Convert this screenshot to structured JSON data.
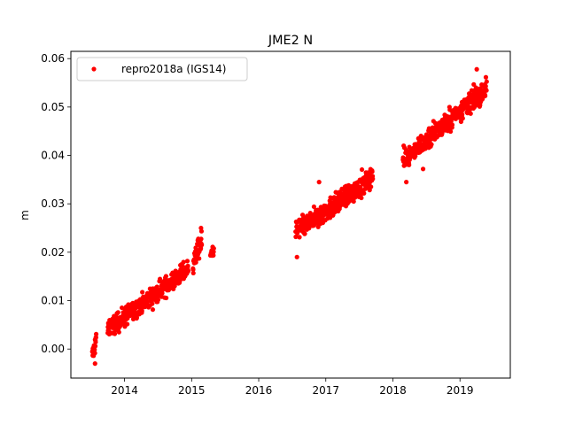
{
  "chart_data": {
    "type": "scatter",
    "title": "JME2 N",
    "xlabel": "",
    "ylabel": "m",
    "xlim": [
      2013.2,
      2019.75
    ],
    "ylim": [
      -0.006,
      0.0615
    ],
    "xticks": [
      2014,
      2015,
      2016,
      2017,
      2018,
      2019
    ],
    "yticks": [
      0.0,
      0.01,
      0.02,
      0.03,
      0.04,
      0.05,
      0.06
    ],
    "ytick_labels": [
      "0.00",
      "0.01",
      "0.02",
      "0.03",
      "0.04",
      "0.05",
      "0.06"
    ],
    "grid": false,
    "legend": {
      "placement": "top-left"
    },
    "series": [
      {
        "name": "repro2018a (IGS14)",
        "color": "#ff0000",
        "marker": "circle",
        "segments": [
          {
            "x_start": 2013.52,
            "x_end": 2013.58,
            "y_start": -0.0015,
            "y_end": 0.002,
            "noise": 0.0015
          },
          {
            "x_start": 2013.75,
            "x_end": 2014.95,
            "y_start": 0.004,
            "y_end": 0.0165,
            "noise": 0.0016
          },
          {
            "x_start": 2015.02,
            "x_end": 2015.15,
            "y_start": 0.018,
            "y_end": 0.022,
            "noise": 0.0018
          },
          {
            "x_start": 2015.28,
            "x_end": 2015.33,
            "y_start": 0.0195,
            "y_end": 0.0205,
            "noise": 0.0008
          },
          {
            "x_start": 2016.55,
            "x_end": 2017.7,
            "y_start": 0.024,
            "y_end": 0.0355,
            "noise": 0.0018
          },
          {
            "x_start": 2018.15,
            "x_end": 2019.4,
            "y_start": 0.039,
            "y_end": 0.054,
            "noise": 0.0017
          }
        ],
        "outliers": [
          [
            2013.56,
            -0.003
          ],
          [
            2015.14,
            0.025
          ],
          [
            2016.57,
            0.019
          ],
          [
            2016.9,
            0.0345
          ],
          [
            2018.2,
            0.0345
          ],
          [
            2018.45,
            0.0372
          ],
          [
            2019.25,
            0.0578
          ],
          [
            2019.15,
            0.0495
          ]
        ]
      }
    ]
  }
}
